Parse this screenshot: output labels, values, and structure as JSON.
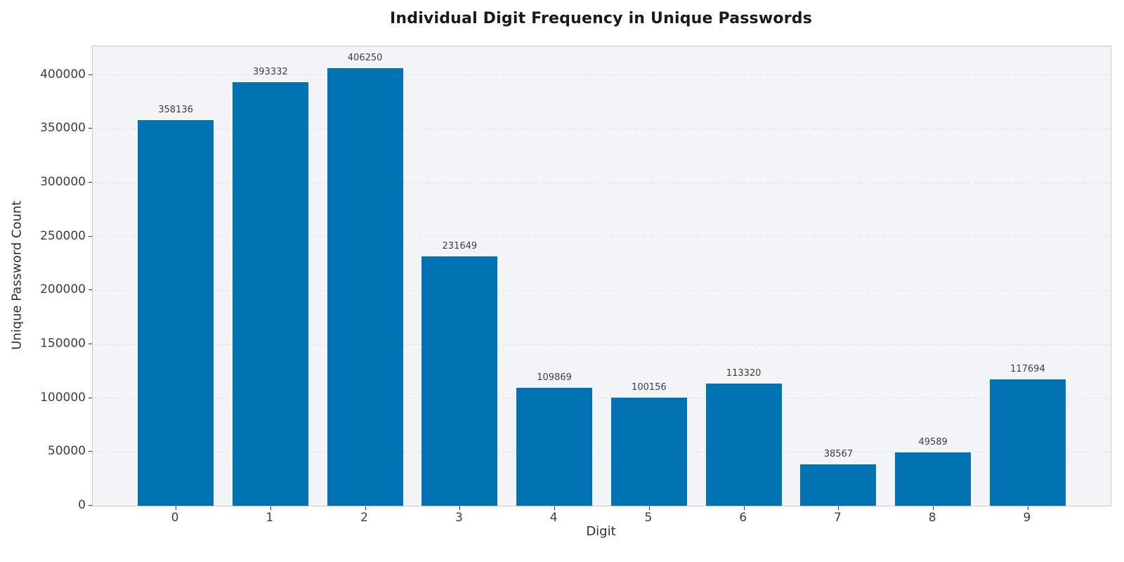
{
  "chart_data": {
    "type": "bar",
    "title": "Individual Digit Frequency in Unique Passwords",
    "xlabel": "Digit",
    "ylabel": "Unique Password Count",
    "categories": [
      "0",
      "1",
      "2",
      "3",
      "4",
      "5",
      "6",
      "7",
      "8",
      "9"
    ],
    "values": [
      358136,
      393332,
      406250,
      231649,
      109869,
      100156,
      113320,
      38567,
      49589,
      117694
    ],
    "bar_labels": [
      "358136",
      "393332",
      "406250",
      "231649",
      "109869",
      "100156",
      "113320",
      "38567",
      "49589",
      "117694"
    ],
    "yticks": [
      0,
      50000,
      100000,
      150000,
      200000,
      250000,
      300000,
      350000,
      400000
    ],
    "ylim": [
      0,
      426562
    ],
    "grid": "horizontal-dashed",
    "legend": "none",
    "colors": {
      "bar": "#0173b2",
      "plot_background": "#f3f4f8",
      "gridline": "#e2e4ee",
      "axis_border": "#c9cbd4",
      "tick_text": "#3d3d3d",
      "title_text": "#1a1a1a"
    }
  }
}
